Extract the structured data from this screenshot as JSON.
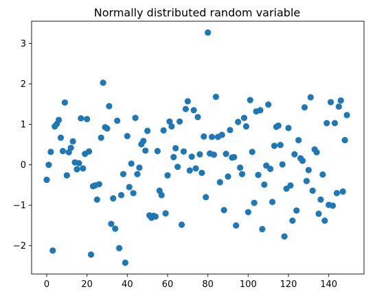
{
  "chart_data": {
    "type": "scatter",
    "title": "Normally distributed random variable",
    "xlabel": "",
    "ylabel": "",
    "xlim": [
      -7.5,
      157.5
    ],
    "ylim": [
      -2.7,
      3.55
    ],
    "xticks": [
      0,
      20,
      40,
      60,
      80,
      100,
      120,
      140
    ],
    "yticks": [
      -2,
      -1,
      0,
      1,
      2,
      3
    ],
    "grid": false,
    "marker_color": "#1f77b4",
    "points": [
      [
        0,
        -0.37
      ],
      [
        1,
        0.0
      ],
      [
        2,
        0.32
      ],
      [
        3,
        -2.12
      ],
      [
        4,
        0.95
      ],
      [
        5,
        1.01
      ],
      [
        6,
        1.11
      ],
      [
        7,
        0.67
      ],
      [
        8,
        0.34
      ],
      [
        9,
        1.54
      ],
      [
        10,
        -0.26
      ],
      [
        11,
        0.31
      ],
      [
        12,
        0.42
      ],
      [
        13,
        0.58
      ],
      [
        14,
        0.06
      ],
      [
        15,
        -0.11
      ],
      [
        16,
        0.04
      ],
      [
        17,
        1.15
      ],
      [
        18,
        -0.09
      ],
      [
        19,
        0.27
      ],
      [
        20,
        1.13
      ],
      [
        21,
        0.33
      ],
      [
        22,
        -2.22
      ],
      [
        23,
        -0.53
      ],
      [
        24,
        -0.51
      ],
      [
        25,
        -0.86
      ],
      [
        26,
        -0.48
      ],
      [
        27,
        0.67
      ],
      [
        28,
        2.03
      ],
      [
        29,
        0.93
      ],
      [
        30,
        0.9
      ],
      [
        31,
        1.45
      ],
      [
        32,
        -1.46
      ],
      [
        33,
        -0.83
      ],
      [
        34,
        -1.58
      ],
      [
        35,
        1.09
      ],
      [
        36,
        -2.06
      ],
      [
        37,
        -0.75
      ],
      [
        38,
        -0.23
      ],
      [
        39,
        -2.42
      ],
      [
        40,
        0.71
      ],
      [
        41,
        -0.55
      ],
      [
        42,
        0.03
      ],
      [
        43,
        -0.7
      ],
      [
        44,
        1.16
      ],
      [
        45,
        -0.23
      ],
      [
        46,
        -0.07
      ],
      [
        47,
        0.51
      ],
      [
        48,
        0.59
      ],
      [
        49,
        0.35
      ],
      [
        50,
        0.84
      ],
      [
        51,
        -1.25
      ],
      [
        52,
        -1.31
      ],
      [
        53,
        -1.26
      ],
      [
        54,
        -1.28
      ],
      [
        55,
        0.34
      ],
      [
        56,
        -0.64
      ],
      [
        57,
        -0.75
      ],
      [
        58,
        0.85
      ],
      [
        59,
        -1.2
      ],
      [
        60,
        -0.26
      ],
      [
        61,
        1.07
      ],
      [
        62,
        0.95
      ],
      [
        63,
        0.19
      ],
      [
        64,
        0.41
      ],
      [
        65,
        -0.05
      ],
      [
        66,
        1.07
      ],
      [
        67,
        -1.48
      ],
      [
        68,
        0.33
      ],
      [
        69,
        1.38
      ],
      [
        70,
        1.57
      ],
      [
        71,
        -0.14
      ],
      [
        72,
        0.2
      ],
      [
        73,
        1.35
      ],
      [
        74,
        -0.09
      ],
      [
        75,
        1.18
      ],
      [
        76,
        0.26
      ],
      [
        77,
        -0.2
      ],
      [
        78,
        0.7
      ],
      [
        79,
        -0.8
      ],
      [
        80,
        3.27
      ],
      [
        81,
        0.28
      ],
      [
        82,
        0.69
      ],
      [
        83,
        0.25
      ],
      [
        84,
        1.68
      ],
      [
        85,
        0.69
      ],
      [
        86,
        -0.43
      ],
      [
        87,
        0.74
      ],
      [
        88,
        -1.12
      ],
      [
        89,
        0.27
      ],
      [
        90,
        -0.29
      ],
      [
        91,
        0.86
      ],
      [
        92,
        0.18
      ],
      [
        93,
        0.19
      ],
      [
        94,
        -1.5
      ],
      [
        95,
        1.06
      ],
      [
        96,
        -0.07
      ],
      [
        97,
        -0.23
      ],
      [
        98,
        1.16
      ],
      [
        99,
        0.95
      ],
      [
        100,
        -1.17
      ],
      [
        101,
        1.6
      ],
      [
        102,
        0.32
      ],
      [
        103,
        -0.94
      ],
      [
        104,
        1.32
      ],
      [
        105,
        -0.25
      ],
      [
        106,
        1.35
      ],
      [
        107,
        -1.59
      ],
      [
        108,
        -0.49
      ],
      [
        109,
        -0.02
      ],
      [
        110,
        1.49
      ],
      [
        111,
        -0.1
      ],
      [
        112,
        -0.92
      ],
      [
        113,
        0.47
      ],
      [
        114,
        0.94
      ],
      [
        115,
        0.97
      ],
      [
        116,
        0.49
      ],
      [
        117,
        0.01
      ],
      [
        118,
        -1.77
      ],
      [
        119,
        -0.59
      ],
      [
        120,
        0.91
      ],
      [
        121,
        -0.51
      ],
      [
        122,
        -1.38
      ],
      [
        123,
        0.26
      ],
      [
        124,
        -1.13
      ],
      [
        125,
        0.61
      ],
      [
        126,
        0.16
      ],
      [
        127,
        0.1
      ],
      [
        128,
        1.42
      ],
      [
        129,
        -0.4
      ],
      [
        130,
        -0.13
      ],
      [
        131,
        1.67
      ],
      [
        132,
        -0.64
      ],
      [
        133,
        0.38
      ],
      [
        134,
        0.31
      ],
      [
        135,
        -1.21
      ],
      [
        136,
        -0.86
      ],
      [
        137,
        -0.24
      ],
      [
        138,
        -1.38
      ],
      [
        139,
        1.03
      ],
      [
        140,
        -0.99
      ],
      [
        141,
        1.55
      ],
      [
        142,
        -1.01
      ],
      [
        143,
        1.03
      ],
      [
        144,
        -0.7
      ],
      [
        145,
        1.44
      ],
      [
        146,
        1.59
      ],
      [
        147,
        -0.66
      ],
      [
        148,
        0.61
      ],
      [
        149,
        1.23
      ]
    ]
  }
}
